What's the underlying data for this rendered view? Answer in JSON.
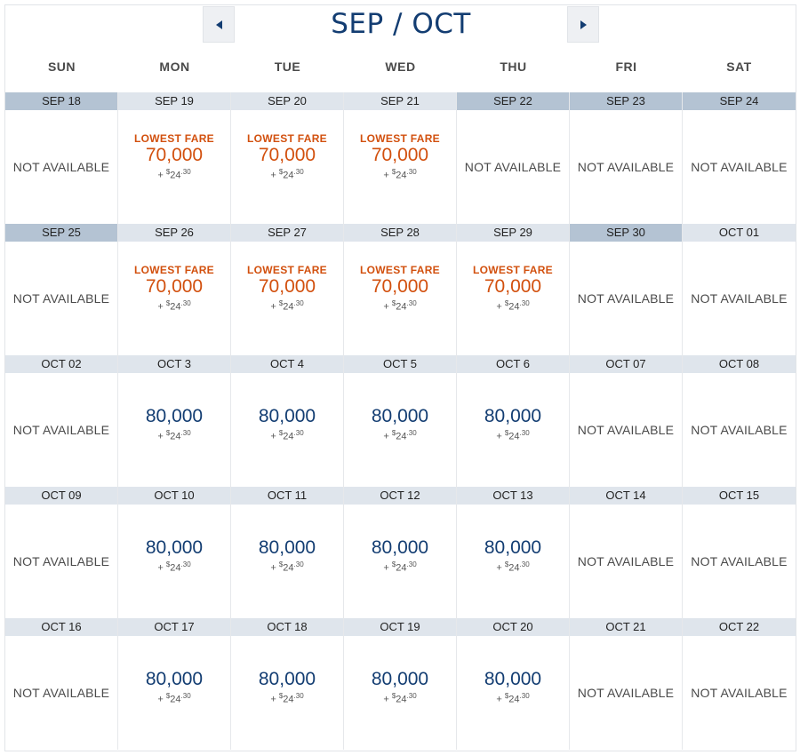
{
  "nav": {
    "title": "SEP / OCT",
    "prev_icon": "triangle-left-icon",
    "next_icon": "triangle-right-icon"
  },
  "weekdays": [
    "SUN",
    "MON",
    "TUE",
    "WED",
    "THU",
    "FRI",
    "SAT"
  ],
  "labels": {
    "not_available": "NOT AVAILABLE",
    "lowest_fare": "LOWEST FARE",
    "tax_prefix": "+ ",
    "tax_currency": "$",
    "tax_dollars": "24",
    "tax_cents": ".30"
  },
  "colors": {
    "brand_blue": "#133d72",
    "lowest_orange": "#d2500e",
    "header_light": "#dfe5ec",
    "header_dark": "#b4c3d3"
  },
  "days": [
    {
      "date": "SEP 18",
      "status": "na",
      "dark": true
    },
    {
      "date": "SEP 19",
      "status": "lowest",
      "miles": "70,000"
    },
    {
      "date": "SEP 20",
      "status": "lowest",
      "miles": "70,000"
    },
    {
      "date": "SEP 21",
      "status": "lowest",
      "miles": "70,000"
    },
    {
      "date": "SEP 22",
      "status": "na",
      "dark": true
    },
    {
      "date": "SEP 23",
      "status": "na",
      "dark": true
    },
    {
      "date": "SEP 24",
      "status": "na",
      "dark": true
    },
    {
      "date": "SEP 25",
      "status": "na",
      "dark": true
    },
    {
      "date": "SEP 26",
      "status": "lowest",
      "miles": "70,000"
    },
    {
      "date": "SEP 27",
      "status": "lowest",
      "miles": "70,000"
    },
    {
      "date": "SEP 28",
      "status": "lowest",
      "miles": "70,000"
    },
    {
      "date": "SEP 29",
      "status": "lowest",
      "miles": "70,000"
    },
    {
      "date": "SEP 30",
      "status": "na",
      "dark": true
    },
    {
      "date": "OCT 01",
      "status": "na"
    },
    {
      "date": "OCT 02",
      "status": "na"
    },
    {
      "date": "OCT 3",
      "status": "fare",
      "miles": "80,000"
    },
    {
      "date": "OCT 4",
      "status": "fare",
      "miles": "80,000"
    },
    {
      "date": "OCT 5",
      "status": "fare",
      "miles": "80,000"
    },
    {
      "date": "OCT 6",
      "status": "fare",
      "miles": "80,000"
    },
    {
      "date": "OCT 07",
      "status": "na"
    },
    {
      "date": "OCT 08",
      "status": "na"
    },
    {
      "date": "OCT 09",
      "status": "na"
    },
    {
      "date": "OCT 10",
      "status": "fare",
      "miles": "80,000"
    },
    {
      "date": "OCT 11",
      "status": "fare",
      "miles": "80,000"
    },
    {
      "date": "OCT 12",
      "status": "fare",
      "miles": "80,000"
    },
    {
      "date": "OCT 13",
      "status": "fare",
      "miles": "80,000"
    },
    {
      "date": "OCT 14",
      "status": "na"
    },
    {
      "date": "OCT 15",
      "status": "na"
    },
    {
      "date": "OCT 16",
      "status": "na"
    },
    {
      "date": "OCT 17",
      "status": "fare",
      "miles": "80,000"
    },
    {
      "date": "OCT 18",
      "status": "fare",
      "miles": "80,000"
    },
    {
      "date": "OCT 19",
      "status": "fare",
      "miles": "80,000"
    },
    {
      "date": "OCT 20",
      "status": "fare",
      "miles": "80,000"
    },
    {
      "date": "OCT 21",
      "status": "na"
    },
    {
      "date": "OCT 22",
      "status": "na"
    }
  ]
}
